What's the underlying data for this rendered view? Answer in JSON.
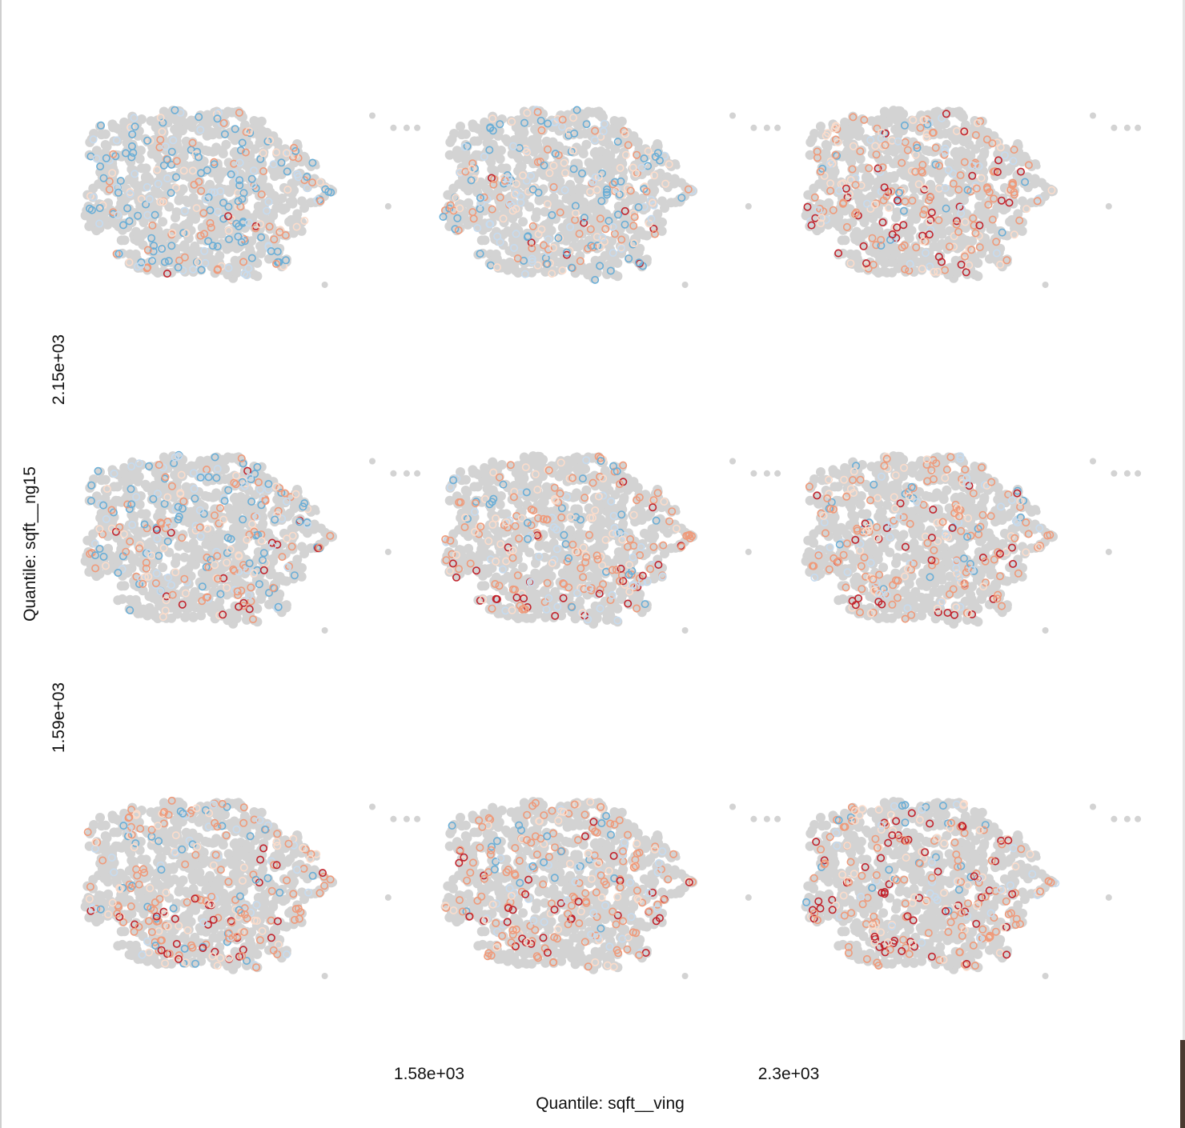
{
  "chart_data": {
    "type": "scatter",
    "layout": "3x3 facet grid of map-style scatter panels",
    "xlabel": "Quantile: sqft__ving",
    "ylabel": "Quantile: sqft__ng15",
    "x_breaks": [
      "1.58e+03",
      "2.3e+03"
    ],
    "y_breaks": [
      "2.15e+03",
      "1.59e+03"
    ],
    "grid": false,
    "legend": "none",
    "point_colors": {
      "background": "#d3d3d3",
      "strong_negative": "#6aaed6",
      "negative": "#c6dbef",
      "near_zero": "#fbdccb",
      "positive": "#ef9a7a",
      "strong_positive": "#c2232c"
    },
    "panels": [
      {
        "row": 1,
        "col": 1,
        "mix": {
          "strong_negative": 0.45,
          "negative": 0.2,
          "near_zero": 0.15,
          "positive": 0.18,
          "strong_positive": 0.02
        }
      },
      {
        "row": 1,
        "col": 2,
        "mix": {
          "strong_negative": 0.25,
          "negative": 0.2,
          "near_zero": 0.25,
          "positive": 0.27,
          "strong_positive": 0.03
        }
      },
      {
        "row": 1,
        "col": 3,
        "mix": {
          "strong_negative": 0.08,
          "negative": 0.12,
          "near_zero": 0.25,
          "positive": 0.4,
          "strong_positive": 0.15
        }
      },
      {
        "row": 2,
        "col": 1,
        "mix": {
          "strong_negative": 0.3,
          "negative": 0.2,
          "near_zero": 0.2,
          "positive": 0.25,
          "strong_positive": 0.05
        }
      },
      {
        "row": 2,
        "col": 2,
        "mix": {
          "strong_negative": 0.12,
          "negative": 0.15,
          "near_zero": 0.25,
          "positive": 0.38,
          "strong_positive": 0.1
        }
      },
      {
        "row": 2,
        "col": 3,
        "mix": {
          "strong_negative": 0.1,
          "negative": 0.15,
          "near_zero": 0.25,
          "positive": 0.38,
          "strong_positive": 0.12
        }
      },
      {
        "row": 3,
        "col": 1,
        "mix": {
          "strong_negative": 0.15,
          "negative": 0.15,
          "near_zero": 0.2,
          "positive": 0.38,
          "strong_positive": 0.12
        }
      },
      {
        "row": 3,
        "col": 2,
        "mix": {
          "strong_negative": 0.1,
          "negative": 0.15,
          "near_zero": 0.2,
          "positive": 0.4,
          "strong_positive": 0.15
        }
      },
      {
        "row": 3,
        "col": 3,
        "mix": {
          "strong_negative": 0.08,
          "negative": 0.12,
          "near_zero": 0.2,
          "positive": 0.4,
          "strong_positive": 0.2
        }
      }
    ]
  }
}
